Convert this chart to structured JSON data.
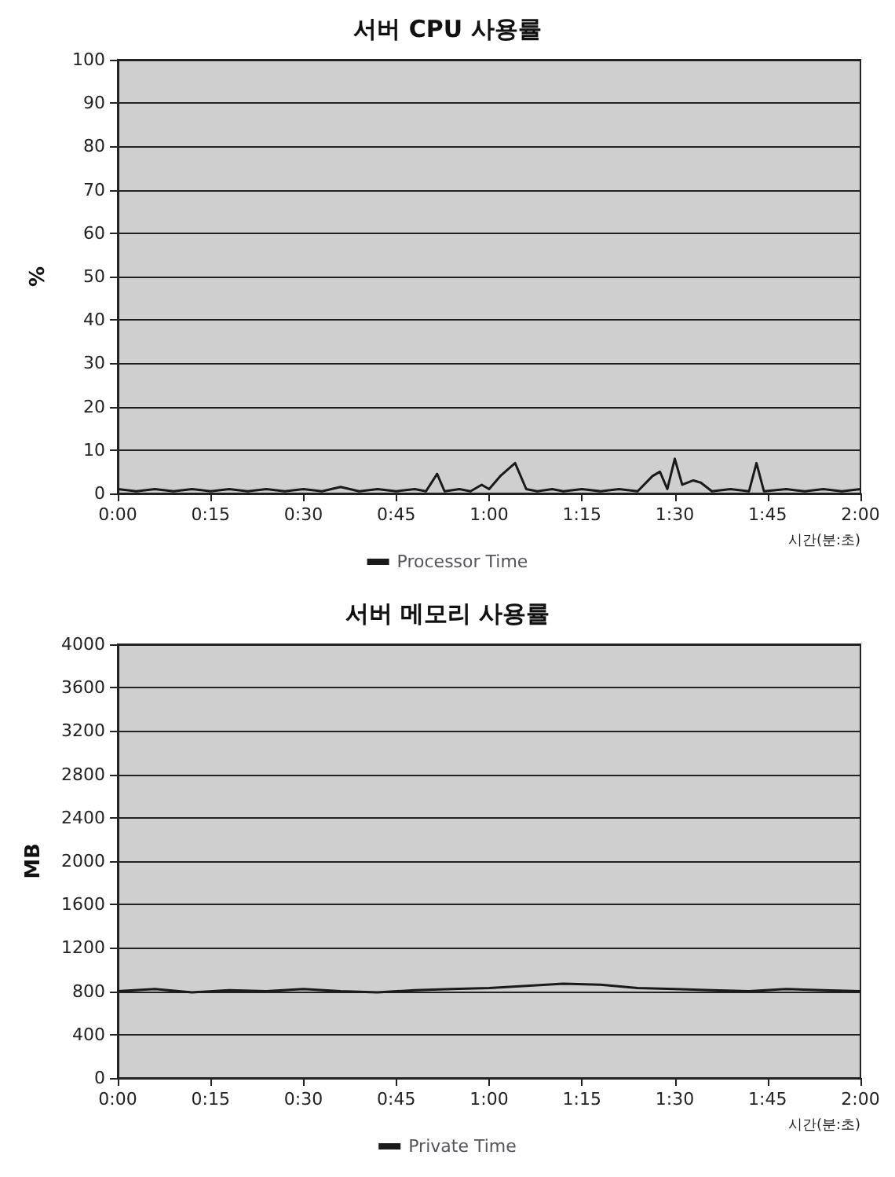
{
  "chart_data": [
    {
      "type": "line",
      "title": "서버 CPU 사용률",
      "xlabel": "시간(분:초)",
      "ylabel": "%",
      "legend": "bottom",
      "grid": "y",
      "marker": "none",
      "line_style": "solid",
      "xlim": [
        0,
        2
      ],
      "xticks": [
        {
          "value": 0,
          "label": "0:00"
        },
        {
          "value": 0.25,
          "label": "0:15"
        },
        {
          "value": 0.5,
          "label": "0:30"
        },
        {
          "value": 0.75,
          "label": "0:45"
        },
        {
          "value": 1,
          "label": "1:00"
        },
        {
          "value": 1.25,
          "label": "1:15"
        },
        {
          "value": 1.5,
          "label": "1:30"
        },
        {
          "value": 1.75,
          "label": "1:45"
        },
        {
          "value": 2,
          "label": "2:00"
        }
      ],
      "ylim": [
        0,
        100
      ],
      "yticks": [
        0,
        10,
        20,
        30,
        40,
        50,
        60,
        70,
        80,
        90,
        100
      ],
      "x": [
        0,
        0.05,
        0.1,
        0.15,
        0.2,
        0.25,
        0.3,
        0.35,
        0.4,
        0.45,
        0.5,
        0.55,
        0.6,
        0.65,
        0.7,
        0.75,
        0.8,
        0.83,
        0.86,
        0.88,
        0.92,
        0.95,
        0.98,
        1.0,
        1.03,
        1.07,
        1.1,
        1.13,
        1.17,
        1.2,
        1.25,
        1.3,
        1.35,
        1.4,
        1.44,
        1.46,
        1.48,
        1.5,
        1.52,
        1.55,
        1.57,
        1.6,
        1.65,
        1.7,
        1.72,
        1.74,
        1.8,
        1.85,
        1.9,
        1.95,
        2.0
      ],
      "series": [
        {
          "name": "Processor Time",
          "color": "#1a1a1a",
          "values": [
            1,
            0.5,
            1,
            0.5,
            1,
            0.5,
            1,
            0.5,
            1,
            0.5,
            1,
            0.5,
            1.5,
            0.5,
            1,
            0.5,
            1,
            0.5,
            4.5,
            0.5,
            1,
            0.5,
            2,
            1,
            4,
            7,
            1,
            0.5,
            1,
            0.5,
            1,
            0.5,
            1,
            0.5,
            4,
            5,
            1,
            8,
            2,
            3,
            2.5,
            0.5,
            1,
            0.5,
            7,
            0.5,
            1,
            0.5,
            1,
            0.5,
            1
          ]
        }
      ]
    },
    {
      "type": "line",
      "title": "서버 메모리 사용률",
      "xlabel": "시간(분:초)",
      "ylabel": "MB",
      "legend": "bottom",
      "grid": "y",
      "marker": "none",
      "line_style": "solid",
      "xlim": [
        0,
        2
      ],
      "xticks": [
        {
          "value": 0,
          "label": "0:00"
        },
        {
          "value": 0.25,
          "label": "0:15"
        },
        {
          "value": 0.5,
          "label": "0:30"
        },
        {
          "value": 0.75,
          "label": "0:45"
        },
        {
          "value": 1,
          "label": "1:00"
        },
        {
          "value": 1.25,
          "label": "1:15"
        },
        {
          "value": 1.5,
          "label": "1:30"
        },
        {
          "value": 1.75,
          "label": "1:45"
        },
        {
          "value": 2,
          "label": "2:00"
        }
      ],
      "ylim": [
        0,
        4000
      ],
      "yticks": [
        0,
        400,
        800,
        1200,
        1600,
        2000,
        2400,
        2800,
        3200,
        3600,
        4000
      ],
      "x": [
        0,
        0.1,
        0.2,
        0.3,
        0.4,
        0.5,
        0.6,
        0.7,
        0.8,
        0.9,
        1.0,
        1.1,
        1.2,
        1.3,
        1.4,
        1.5,
        1.6,
        1.7,
        1.8,
        1.9,
        2.0
      ],
      "series": [
        {
          "name": "Private Time",
          "color": "#1a1a1a",
          "values": [
            800,
            820,
            790,
            810,
            800,
            820,
            800,
            790,
            810,
            820,
            830,
            850,
            870,
            860,
            830,
            820,
            810,
            800,
            820,
            810,
            800
          ]
        }
      ]
    }
  ]
}
